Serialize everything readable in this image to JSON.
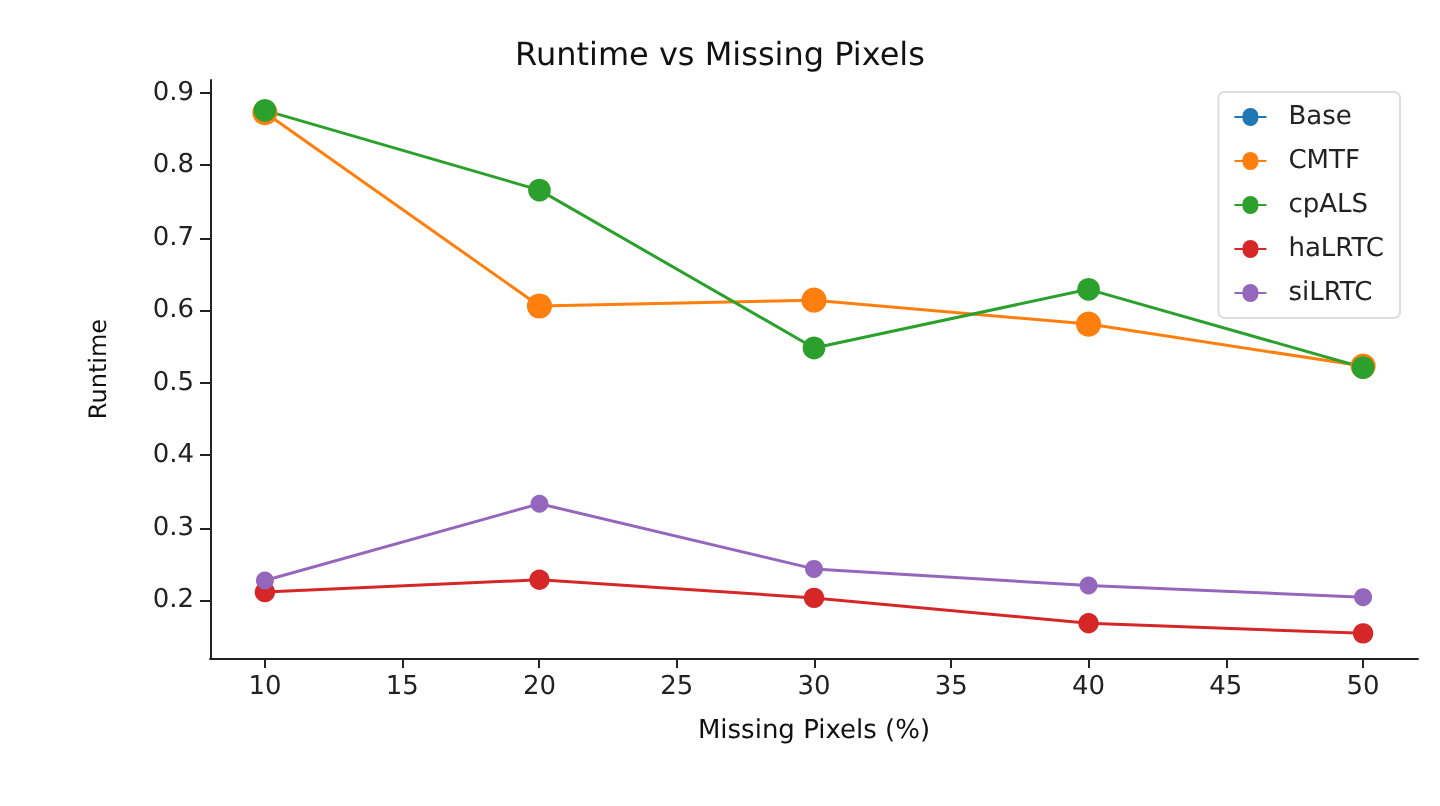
{
  "chart_data": {
    "type": "line",
    "title": "Runtime vs Missing Pixels",
    "xlabel": "Missing Pixels (%)",
    "ylabel": "Runtime",
    "x": [
      10,
      20,
      30,
      40,
      50
    ],
    "series": [
      {
        "name": "Base",
        "color": "#1f77b4",
        "values": [
          null,
          null,
          null,
          null,
          null
        ]
      },
      {
        "name": "CMTF",
        "color": "#ff7f0e",
        "values": [
          0.873,
          0.606,
          0.614,
          0.581,
          0.523
        ]
      },
      {
        "name": "cpALS",
        "color": "#2ca02c",
        "values": [
          0.876,
          0.766,
          0.548,
          0.629,
          0.521
        ]
      },
      {
        "name": "haLRTC",
        "color": "#d62728",
        "values": [
          0.211,
          0.228,
          0.203,
          0.168,
          0.154
        ]
      },
      {
        "name": "siLRTC",
        "color": "#9467bd",
        "values": [
          0.227,
          0.333,
          0.243,
          0.22,
          0.204
        ]
      }
    ],
    "xlim": [
      8,
      52
    ],
    "xticks": [
      10,
      15,
      20,
      25,
      30,
      35,
      40,
      45,
      50
    ],
    "ylim": [
      0.12,
      0.918
    ],
    "yticks": [
      0.2,
      0.3,
      0.4,
      0.5,
      0.6,
      0.7,
      0.8,
      0.9
    ],
    "grid": false,
    "legend": "top right",
    "marker": "circle",
    "line_style": "solid"
  }
}
